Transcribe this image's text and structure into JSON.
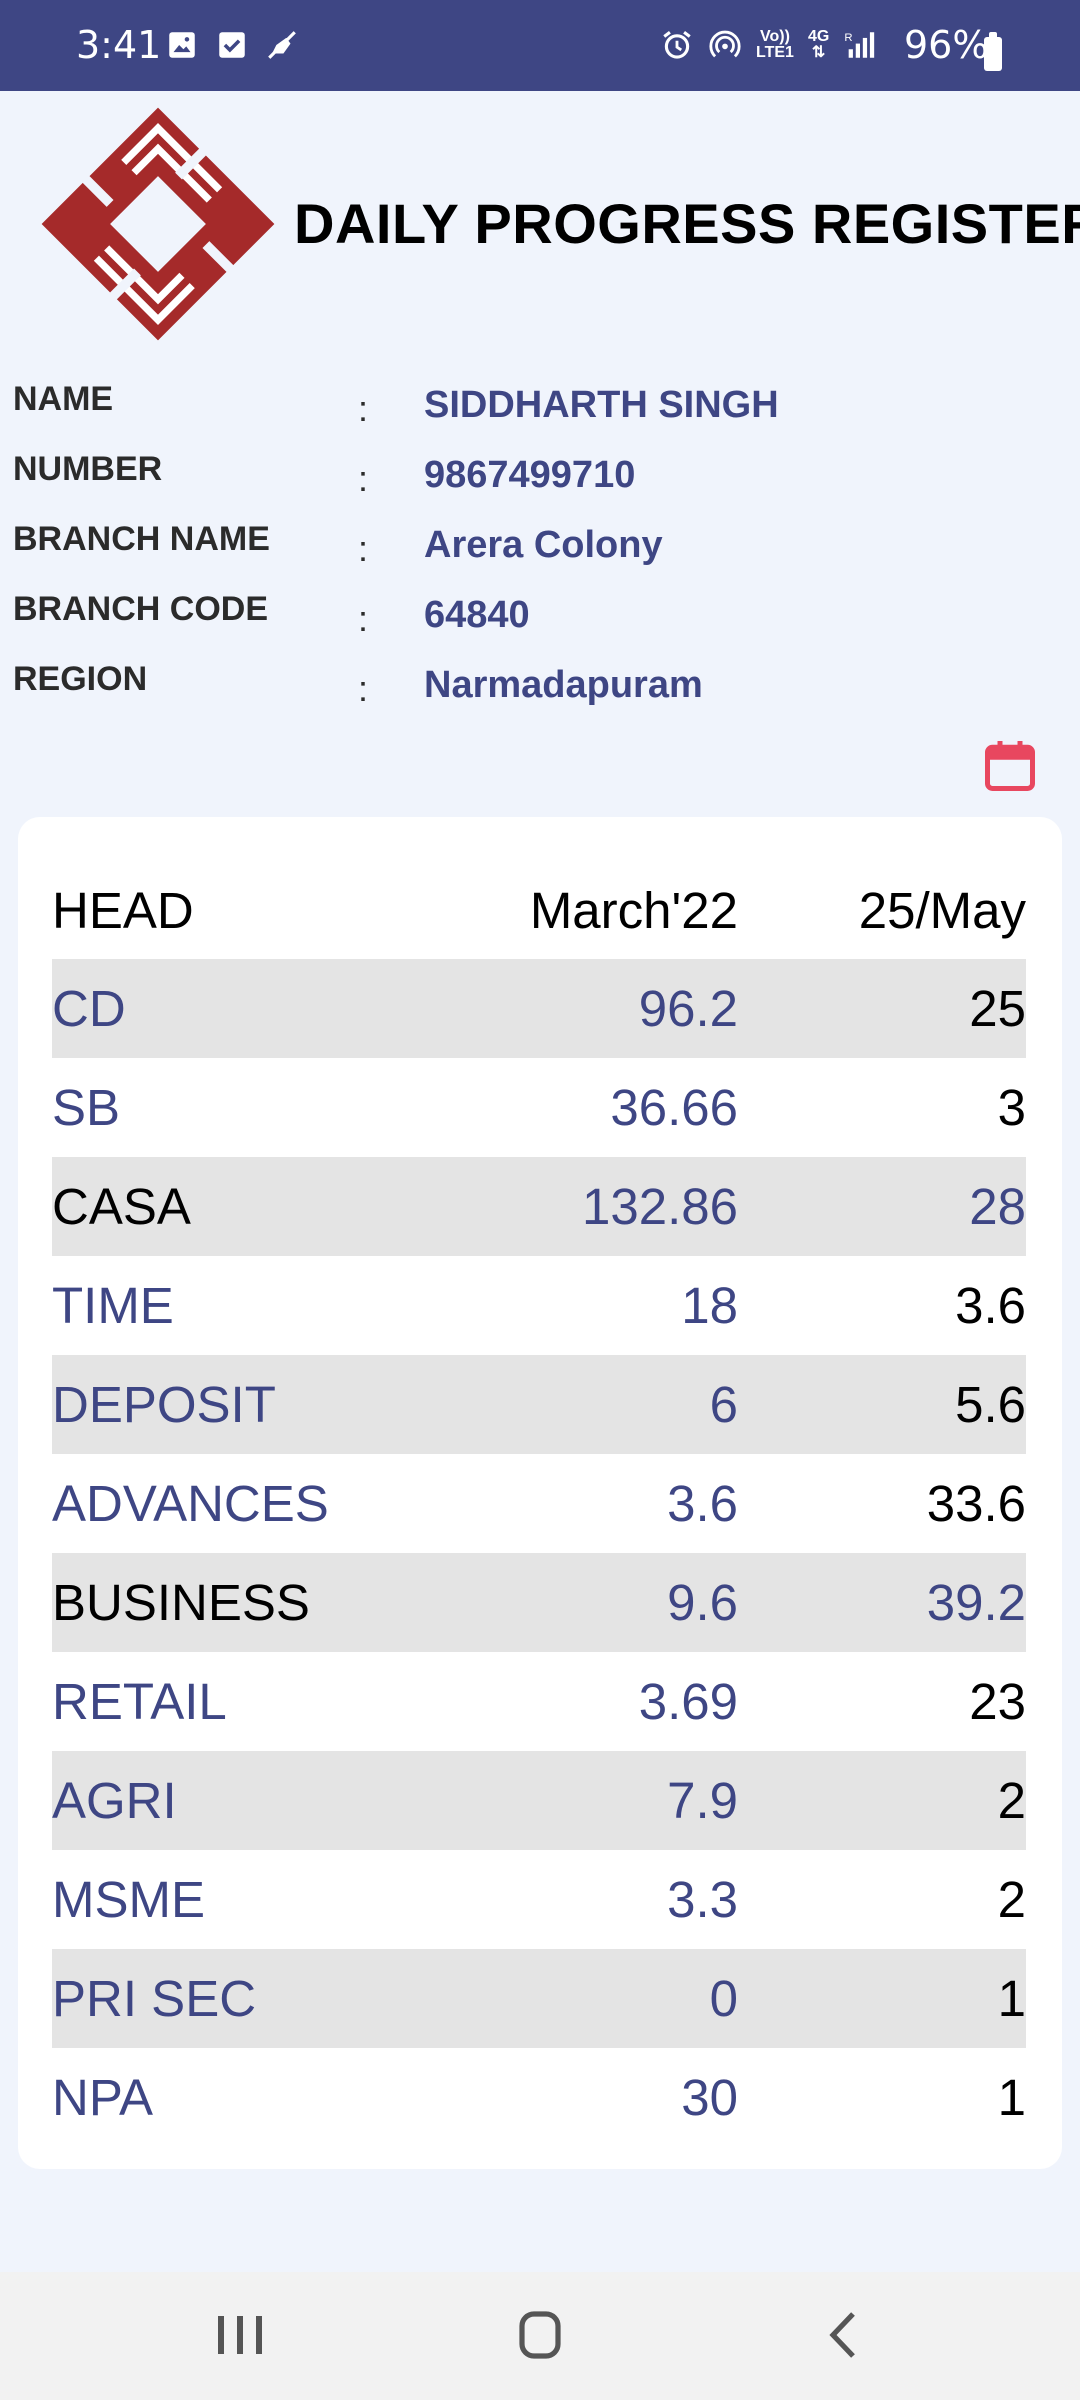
{
  "status_bar": {
    "time": "3:41",
    "battery": "96%",
    "icons": [
      "image-icon",
      "checkbox-icon",
      "mute-icon",
      "alarm-icon",
      "hotspot-icon",
      "volte-icon",
      "4g-icon",
      "signal-icon",
      "battery-icon"
    ],
    "volte_top": "Vo))",
    "volte_bottom": "LTE1",
    "net_label": "4G",
    "roaming": "R"
  },
  "header": {
    "title": "DAILY PROGRESS REGISTER"
  },
  "colors": {
    "primary": "#3e4684",
    "logo_red": "#a52a2a",
    "calendar": "#e8475f",
    "row_shade": "#e4e4e4",
    "background": "#f0f4fc"
  },
  "info": [
    {
      "label": "NAME",
      "colon": ":",
      "value": "SIDDHARTH SINGH"
    },
    {
      "label": "NUMBER",
      "colon": ":",
      "value": "9867499710"
    },
    {
      "label": "BRANCH NAME",
      "colon": ":",
      "value": "Arera Colony"
    },
    {
      "label": "BRANCH CODE",
      "colon": ":",
      "value": "64840"
    },
    {
      "label": "REGION",
      "colon": ":",
      "value": "Narmadapuram"
    }
  ],
  "table": {
    "headers": {
      "head": "HEAD",
      "march": "March'22",
      "date": "25/May"
    },
    "rows": [
      {
        "head": "CD",
        "march": "96.2",
        "date": "25"
      },
      {
        "head": "SB",
        "march": "36.66",
        "date": "3"
      },
      {
        "head": "CASA",
        "march": "132.86",
        "date": "28"
      },
      {
        "head": "TIME",
        "march": "18",
        "date": "3.6"
      },
      {
        "head": "DEPOSIT",
        "march": "6",
        "date": "5.6"
      },
      {
        "head": "ADVANCES",
        "march": "3.6",
        "date": "33.6"
      },
      {
        "head": "BUSINESS",
        "march": "9.6",
        "date": "39.2"
      },
      {
        "head": "RETAIL",
        "march": "3.69",
        "date": "23"
      },
      {
        "head": "AGRI",
        "march": "7.9",
        "date": "2"
      },
      {
        "head": "MSME",
        "march": "3.3",
        "date": "2"
      },
      {
        "head": "PRI SEC",
        "march": "0",
        "date": "1"
      },
      {
        "head": "NPA",
        "march": "30",
        "date": "1"
      }
    ]
  },
  "nav": {
    "icons": [
      "recents-icon",
      "home-icon",
      "back-icon"
    ]
  }
}
